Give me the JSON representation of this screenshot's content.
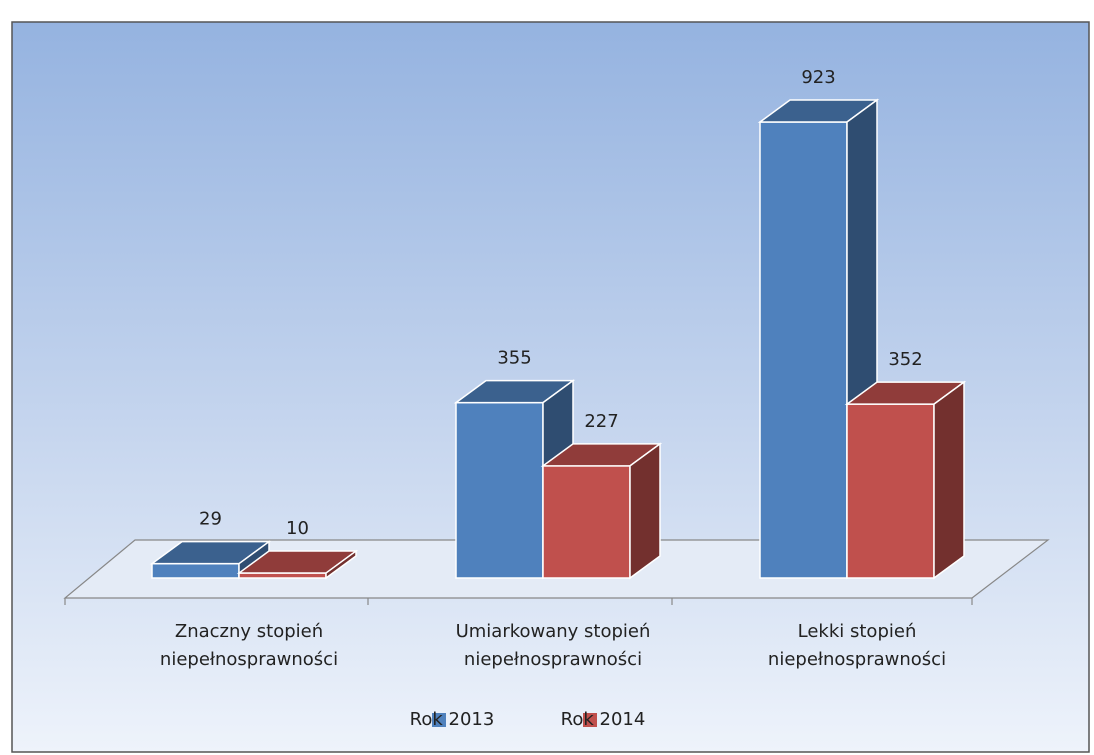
{
  "chart_data": {
    "type": "bar3d",
    "categories": [
      "Znaczny stopień niepełnosprawności",
      "Umiarkowany stopień niepełnosprawności",
      "Lekki stopień niepełnosprawności"
    ],
    "series": [
      {
        "name": "Rok 2013",
        "color": "#4f81bd",
        "values": [
          29,
          355,
          923
        ]
      },
      {
        "name": "Rok 2014",
        "color": "#c0504d",
        "values": [
          10,
          227,
          352
        ]
      }
    ],
    "legend": "bottom"
  }
}
